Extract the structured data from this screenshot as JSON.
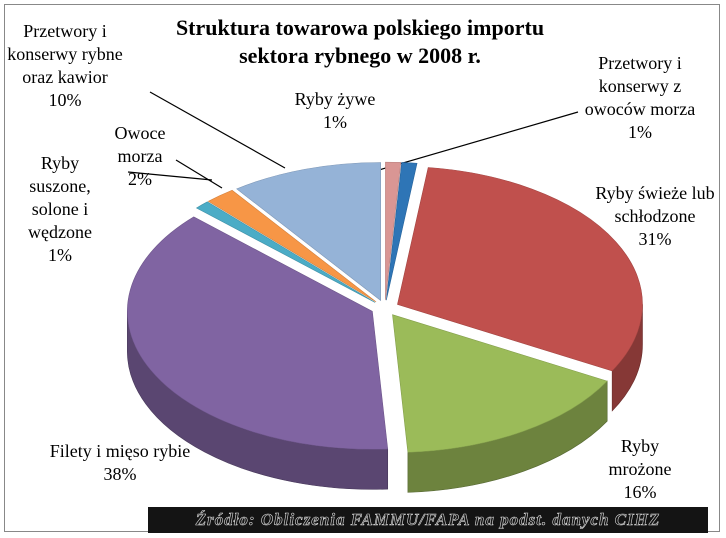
{
  "chart_data": {
    "type": "pie",
    "title": "Struktura towarowa polskiego importu sektora rybnego w 2008 r.",
    "categories": [
      "Ryby żywe",
      "Przetwory i konserwy z owoców morza",
      "Ryby świeże lub schłodzone",
      "Ryby mrożone",
      "Filety i mięso rybie",
      "Ryby suszone, solone i wędzone",
      "Owoce morza",
      "Przetwory i konserwy rybne oraz kawior"
    ],
    "values": [
      1,
      1,
      31,
      16,
      38,
      1,
      2,
      10
    ],
    "value_labels": [
      "1%",
      "1%",
      "31%",
      "16%",
      "38%",
      "1%",
      "2%",
      "10%"
    ],
    "colors": [
      "#d99694",
      "#2e75b6",
      "#c0504d",
      "#9bbb59",
      "#8064a2",
      "#4bacc6",
      "#f79646",
      "#95b3d7"
    ],
    "source": "Źródło: Obliczenia FAMMU/FAPA na podst. danych CIHZ"
  }
}
